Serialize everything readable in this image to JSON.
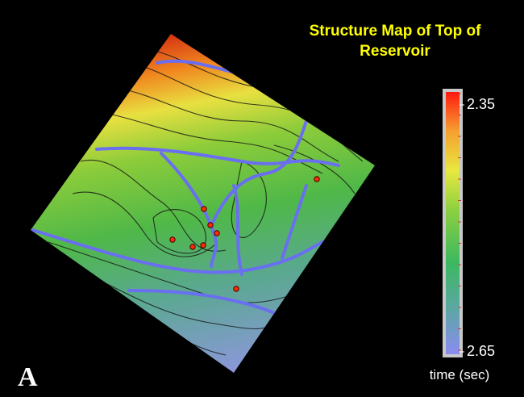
{
  "title": "Structure Map of Top of Reservoir",
  "panel_label": "A",
  "colorbar": {
    "label": "time (sec)",
    "ticks": [
      2.35,
      2.65
    ]
  }
}
